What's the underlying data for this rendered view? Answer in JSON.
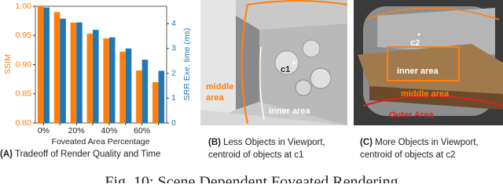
{
  "chart_data": {
    "type": "bar",
    "x_label": "Foveated Area Percentage",
    "y_label": "SSIM",
    "y2_label": "SRR Exe. time (ms)",
    "categories": [
      "0%",
      null,
      "20%",
      null,
      "40%",
      null,
      "60%",
      null
    ],
    "series": [
      {
        "name": "SSIM",
        "color": "#ff7f0e",
        "values": [
          1.0,
          0.99,
          0.972,
          0.953,
          0.945,
          0.922,
          0.89,
          0.87
        ]
      },
      {
        "name": "SRR Exe. time",
        "color": "#1f77b4",
        "axis": "y2",
        "values": [
          4.65,
          4.2,
          4.05,
          3.75,
          3.45,
          3.0,
          2.55,
          2.1
        ]
      }
    ],
    "ylim": [
      0.8,
      1.0
    ],
    "yticks": [
      {
        "value": 0.8,
        "label": "0.80"
      },
      0.85,
      {
        "value": 0.9,
        "label": "0.90"
      },
      0.95,
      {
        "value": 1.0,
        "label": "1.00"
      }
    ],
    "y2lim": [
      0,
      4.7
    ],
    "y2ticks": [
      0,
      1,
      2,
      3,
      4
    ],
    "caption": {
      "label": "(A)",
      "text": "Tradeoff of Render Quality and Time"
    }
  },
  "panels": [
    {
      "caption_label": "(B)",
      "caption": [
        "Less Objects in Viewport,",
        "centroid of objects at c1"
      ],
      "labels": {
        "centroid": "c1",
        "middle_area": [
          "middle",
          "area"
        ],
        "inner_area": "inner area"
      }
    },
    {
      "caption_label": "(C)",
      "caption": [
        "More Objects in Viewport,",
        "centroid of objects at c2"
      ],
      "labels": {
        "centroid": "c2",
        "inner_area": "inner area",
        "middle_area": "middle area",
        "outer_area": "Outer Area"
      }
    }
  ],
  "figure_caption": "Fig. 10: Scene Dependent Foveated Rendering"
}
